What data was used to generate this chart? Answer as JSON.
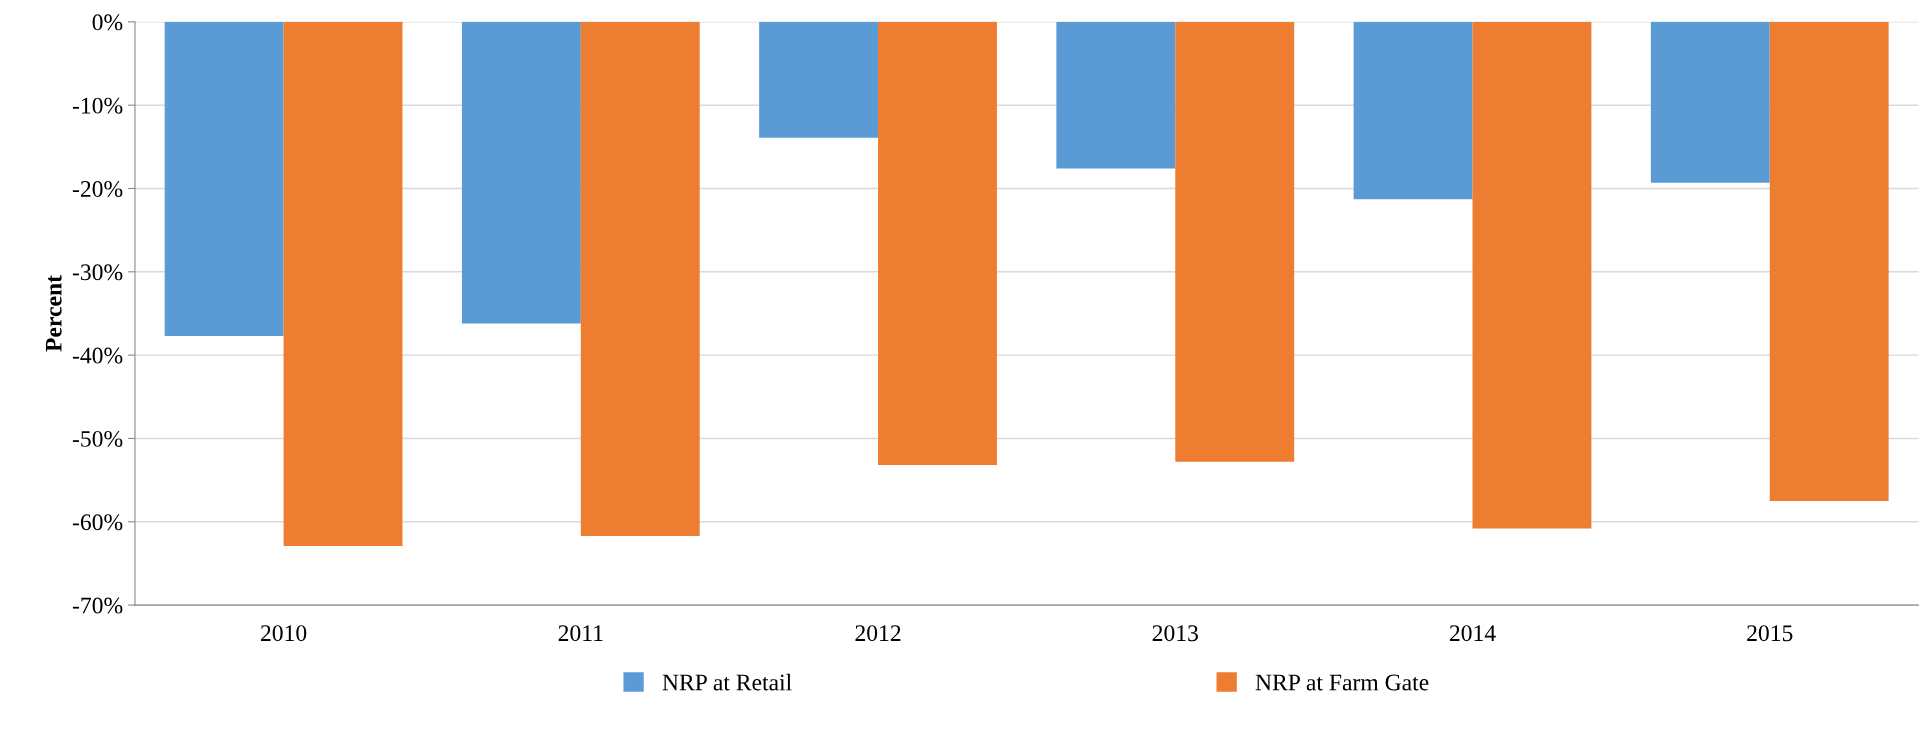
{
  "chart_data": {
    "type": "bar",
    "ylabel": "Percent",
    "categories": [
      "2010",
      "2011",
      "2012",
      "2013",
      "2014",
      "2015"
    ],
    "series": [
      {
        "name": "NRP at Retail",
        "color": "#5b9bd5",
        "values": [
          -37.7,
          -36.2,
          -13.9,
          -17.6,
          -21.3,
          -19.3
        ]
      },
      {
        "name": "NRP at Farm Gate",
        "color": "#ed7d31",
        "values": [
          -62.9,
          -61.7,
          -53.2,
          -52.8,
          -60.8,
          -57.5
        ]
      }
    ],
    "ylim": [
      -70,
      0
    ],
    "yticks": [
      {
        "value": -70,
        "label": "-70%"
      },
      {
        "value": -60,
        "label": "-60%"
      },
      {
        "value": -50,
        "label": "-50%"
      },
      {
        "value": -40,
        "label": "-40%"
      },
      {
        "value": -30,
        "label": "-30%"
      },
      {
        "value": -20,
        "label": "-20%"
      },
      {
        "value": -10,
        "label": "-10%"
      },
      {
        "value": 0,
        "label": "0%"
      }
    ],
    "grid": "y",
    "legend": "bottom"
  }
}
